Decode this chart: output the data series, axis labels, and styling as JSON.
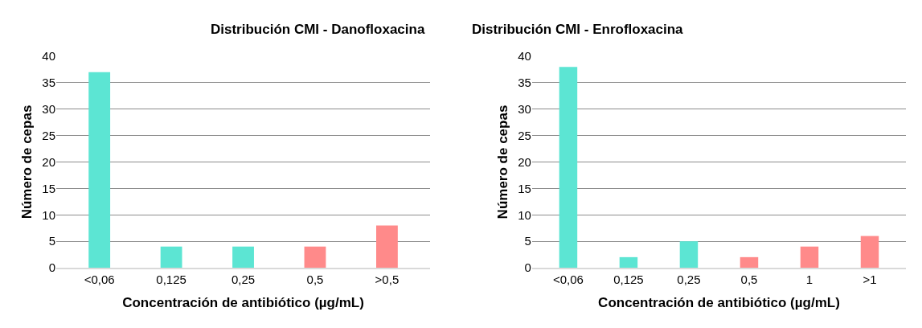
{
  "chart_data": [
    {
      "type": "bar",
      "title": "Distribución CMI - Danofloxacina",
      "xlabel": "Concentración de antibiótico (µg/mL)",
      "ylabel": "Número de cepas",
      "categories": [
        "<0,06",
        "0,125",
        "0,25",
        "0,5",
        ">0,5"
      ],
      "values": [
        37,
        4,
        4,
        4,
        8
      ],
      "colors": [
        "#5ce5d3",
        "#5ce5d3",
        "#5ce5d3",
        "#ff8a8a",
        "#ff8a8a"
      ],
      "ylim": [
        0,
        40
      ],
      "yticks": [
        0,
        5,
        10,
        15,
        20,
        25,
        30,
        35,
        40
      ],
      "grid": "y",
      "legend": false
    },
    {
      "type": "bar",
      "title": "Distribución CMI - Enrofloxacina",
      "xlabel": "Concentración de antibiótico (µg/mL)",
      "ylabel": "Número de cepas",
      "categories": [
        "<0,06",
        "0,125",
        "0,25",
        "0,5",
        "1",
        ">1"
      ],
      "values": [
        38,
        2,
        5,
        2,
        4,
        6
      ],
      "colors": [
        "#5ce5d3",
        "#5ce5d3",
        "#5ce5d3",
        "#ff8a8a",
        "#ff8a8a",
        "#ff8a8a"
      ],
      "ylim": [
        0,
        40
      ],
      "yticks": [
        0,
        5,
        10,
        15,
        20,
        25,
        30,
        35,
        40
      ],
      "grid": "y",
      "legend": false
    }
  ]
}
